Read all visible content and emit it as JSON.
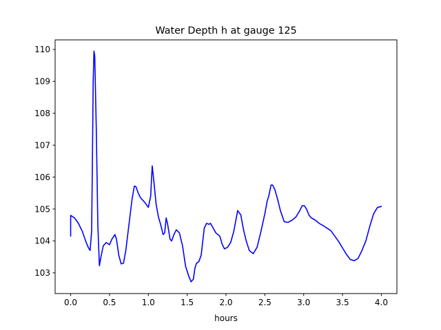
{
  "chart_data": {
    "type": "line",
    "title": "Water Depth h at gauge 125",
    "xlabel": "hours",
    "ylabel": "",
    "xlim": [
      -0.2,
      4.2
    ],
    "ylim": [
      102.35,
      110.3
    ],
    "xticks": [
      0.0,
      0.5,
      1.0,
      1.5,
      2.0,
      2.5,
      3.0,
      3.5,
      4.0
    ],
    "xtick_labels": [
      "0.0",
      "0.5",
      "1.0",
      "1.5",
      "2.0",
      "2.5",
      "3.0",
      "3.5",
      "4.0"
    ],
    "yticks": [
      103,
      104,
      105,
      106,
      107,
      108,
      109,
      110
    ],
    "ytick_labels": [
      "103",
      "104",
      "105",
      "106",
      "107",
      "108",
      "109",
      "110"
    ],
    "grid": false,
    "legend": "none",
    "color": "#0000ff",
    "series": [
      {
        "x": [
          0.0,
          0.0,
          0.05,
          0.1,
          0.15,
          0.2,
          0.23,
          0.25,
          0.27,
          0.28,
          0.29,
          0.3,
          0.31,
          0.33,
          0.35,
          0.37,
          0.39,
          0.42,
          0.46,
          0.5,
          0.53,
          0.57,
          0.59,
          0.62,
          0.65,
          0.68,
          0.71,
          0.75,
          0.79,
          0.82,
          0.84,
          0.87,
          0.9,
          0.95,
          1.0,
          1.03,
          1.05,
          1.07,
          1.1,
          1.13,
          1.16,
          1.19,
          1.21,
          1.23,
          1.25,
          1.28,
          1.3,
          1.33,
          1.36,
          1.4,
          1.44,
          1.48,
          1.52,
          1.55,
          1.58,
          1.6,
          1.62,
          1.65,
          1.68,
          1.72,
          1.75,
          1.78,
          1.8,
          1.83,
          1.87,
          1.92,
          1.95,
          1.98,
          2.02,
          2.06,
          2.1,
          2.15,
          2.17,
          2.19,
          2.21,
          2.23,
          2.26,
          2.3,
          2.35,
          2.4,
          2.45,
          2.5,
          2.53,
          2.55,
          2.58,
          2.6,
          2.63,
          2.67,
          2.7,
          2.75,
          2.8,
          2.85,
          2.9,
          2.95,
          2.98,
          3.01,
          3.04,
          3.07,
          3.1,
          3.15,
          3.2,
          3.25,
          3.3,
          3.35,
          3.4,
          3.45,
          3.5,
          3.55,
          3.6,
          3.65,
          3.7,
          3.75,
          3.8,
          3.85,
          3.9,
          3.95,
          4.0
        ],
        "y": [
          104.15,
          104.8,
          104.72,
          104.55,
          104.3,
          103.95,
          103.78,
          103.7,
          104.3,
          106.5,
          109.0,
          109.95,
          109.8,
          107.5,
          104.5,
          103.22,
          103.5,
          103.85,
          103.95,
          103.88,
          104.05,
          104.2,
          104.05,
          103.55,
          103.28,
          103.3,
          103.7,
          104.5,
          105.3,
          105.72,
          105.7,
          105.5,
          105.35,
          105.22,
          105.05,
          105.4,
          106.35,
          105.9,
          105.15,
          104.75,
          104.5,
          104.2,
          104.25,
          104.72,
          104.5,
          104.05,
          104.0,
          104.2,
          104.35,
          104.25,
          103.85,
          103.2,
          102.9,
          102.72,
          102.8,
          103.15,
          103.3,
          103.35,
          103.55,
          104.4,
          104.55,
          104.52,
          104.55,
          104.42,
          104.25,
          104.15,
          103.9,
          103.75,
          103.8,
          103.95,
          104.3,
          104.95,
          104.88,
          104.82,
          104.55,
          104.3,
          104.0,
          103.7,
          103.6,
          103.8,
          104.3,
          104.85,
          105.25,
          105.4,
          105.75,
          105.75,
          105.6,
          105.25,
          104.95,
          104.6,
          104.58,
          104.65,
          104.75,
          104.95,
          105.1,
          105.1,
          104.98,
          104.8,
          104.72,
          104.65,
          104.55,
          104.48,
          104.4,
          104.32,
          104.15,
          103.98,
          103.78,
          103.58,
          103.42,
          103.38,
          103.45,
          103.7,
          104.0,
          104.45,
          104.85,
          105.05,
          105.08
        ]
      }
    ]
  }
}
